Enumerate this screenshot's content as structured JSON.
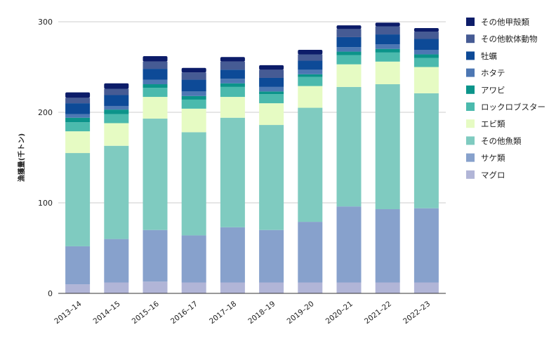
{
  "chart_data": {
    "type": "bar",
    "stacked": true,
    "title": "",
    "xlabel": "",
    "ylabel": "漁獲量(千トン)",
    "ylim": [
      0,
      300
    ],
    "yticks": [
      0,
      100,
      200,
      300
    ],
    "grid": true,
    "legend_position": "right",
    "categories": [
      "2013–14",
      "2014–15",
      "2015–16",
      "2016–17",
      "2017–18",
      "2018–19",
      "2019–20",
      "2020–21",
      "2021–22",
      "2022–23"
    ],
    "series": [
      {
        "name": "マグロ",
        "color": "#b1b5d7",
        "values": [
          10,
          12,
          13,
          12,
          12,
          12,
          12,
          12,
          12,
          12
        ]
      },
      {
        "name": "サケ類",
        "color": "#87a1cc",
        "values": [
          42,
          48,
          57,
          52,
          61,
          58,
          67,
          84,
          81,
          82
        ]
      },
      {
        "name": "その他魚類",
        "color": "#7fcbc0",
        "values": [
          103,
          103,
          123,
          114,
          121,
          116,
          126,
          132,
          138,
          127
        ]
      },
      {
        "name": "エビ類",
        "color": "#e6fbc3",
        "values": [
          24,
          25,
          24,
          26,
          23,
          24,
          24,
          25,
          25,
          29
        ]
      },
      {
        "name": "ロックロブスター",
        "color": "#4bbaad",
        "values": [
          10,
          10,
          10,
          10,
          11,
          10,
          10,
          10,
          10,
          10
        ]
      },
      {
        "name": "アワビ",
        "color": "#0b948a",
        "values": [
          5,
          5,
          4,
          4,
          4,
          3,
          3,
          4,
          4,
          4
        ]
      },
      {
        "name": "ホタテ",
        "color": "#4d77b3",
        "values": [
          4,
          4,
          5,
          5,
          5,
          5,
          5,
          5,
          5,
          5
        ]
      },
      {
        "name": "牡蠣",
        "color": "#0d4a97",
        "values": [
          12,
          12,
          12,
          13,
          10,
          10,
          10,
          11,
          11,
          12
        ]
      },
      {
        "name": "その他軟体動物",
        "color": "#465b94",
        "values": [
          6,
          7,
          8,
          8,
          9,
          9,
          7,
          9,
          9,
          8
        ]
      },
      {
        "name": "その他甲殻類",
        "color": "#0c1c69",
        "values": [
          6,
          6,
          6,
          5,
          5,
          5,
          5,
          4,
          4,
          4
        ]
      }
    ]
  }
}
